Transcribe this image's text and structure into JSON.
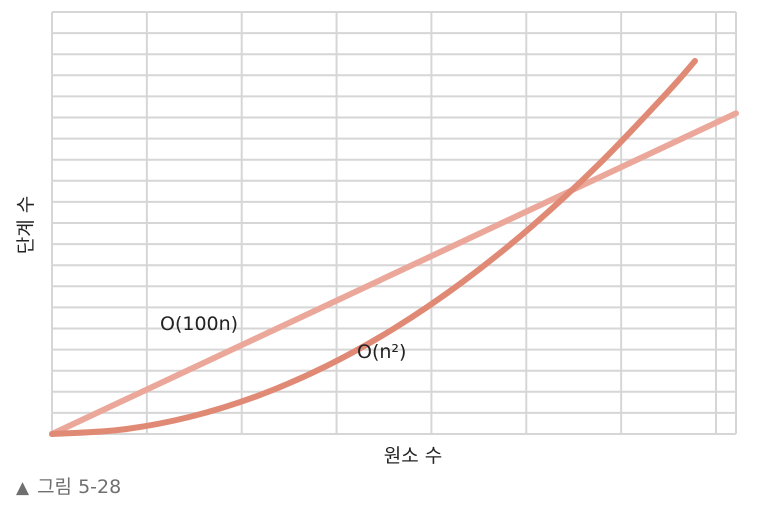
{
  "chart_data": {
    "type": "line",
    "xlabel": "원소 수",
    "ylabel": "단계 수",
    "grid": true,
    "xlim": [
      0,
      10
    ],
    "ylim": [
      0,
      10
    ],
    "series": [
      {
        "name": "O(100n)",
        "color": "#eba89a",
        "x": [
          0,
          10
        ],
        "y": [
          0,
          7.6
        ]
      },
      {
        "name": "O(n²)",
        "color": "#e08a76",
        "x": [
          0,
          1,
          2,
          3,
          4,
          5,
          6,
          7,
          8,
          9,
          9.4
        ],
        "y": [
          0,
          0.1,
          0.4,
          0.9,
          1.6,
          2.5,
          3.6,
          4.9,
          6.4,
          8.1,
          8.84
        ]
      }
    ]
  },
  "caption": {
    "marker": "▲",
    "text": "그림 5-28"
  }
}
